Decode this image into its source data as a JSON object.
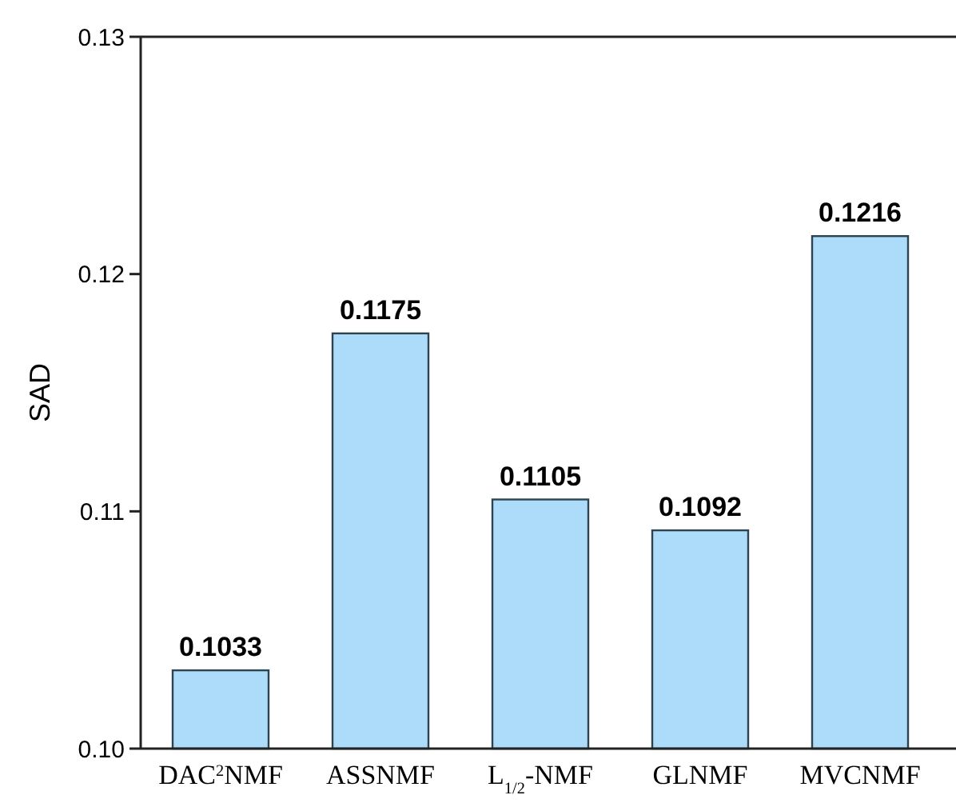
{
  "chart_data": {
    "type": "bar",
    "ylabel": "SAD",
    "categories": [
      "DAC$^{2}$NMF",
      "ASSNMF",
      "L$_{1/2}$-NMF",
      "GLNMF",
      "MVCNMF"
    ],
    "values": [
      0.1033,
      0.1175,
      0.1105,
      0.1092,
      0.1216
    ],
    "color": "#acdcfa",
    "ylim": [
      0.1,
      0.13
    ],
    "yticks": [
      {
        "value": 0.1,
        "label": "0.10"
      },
      0.11,
      0.12,
      0.13
    ],
    "data_labels": true
  }
}
